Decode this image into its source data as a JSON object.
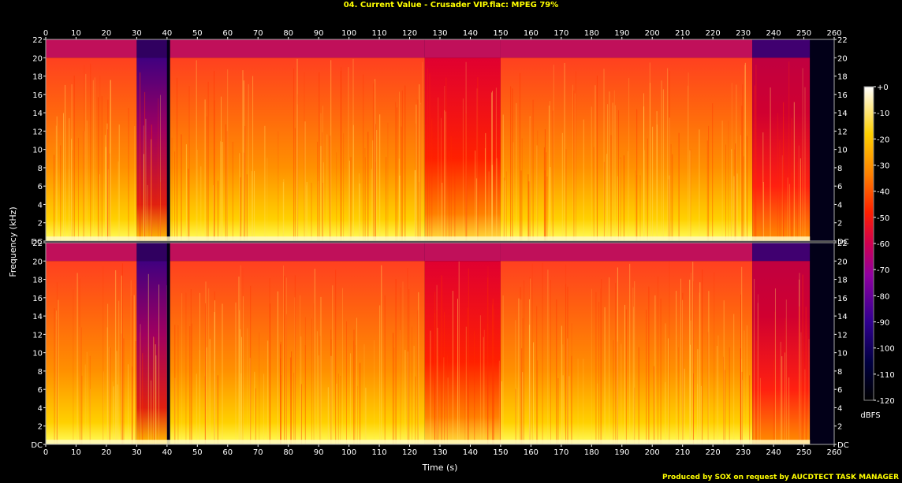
{
  "title": "04. Current Value - Crusader VIP.flac: MPEG 79%",
  "footer": "Produced by SOX on request by AUCDTECT TASK MANAGER",
  "chart_data": {
    "type": "heatmap",
    "title": "04. Current Value - Crusader VIP.flac: MPEG 79%",
    "xlabel": "Time (s)",
    "ylabel": "Frequency (kHz)",
    "xlim": [
      0,
      260
    ],
    "ylim": [
      0,
      22
    ],
    "x_ticks": [
      "0",
      "10",
      "20",
      "30",
      "40",
      "50",
      "60",
      "70",
      "80",
      "90",
      "100",
      "110",
      "120",
      "130",
      "140",
      "150",
      "160",
      "170",
      "180",
      "190",
      "200",
      "210",
      "220",
      "230",
      "240",
      "250",
      "260"
    ],
    "y_ticks": [
      "DC",
      "2",
      "4",
      "6",
      "8",
      "10",
      "12",
      "14",
      "16",
      "18",
      "20",
      "22"
    ],
    "channels": 2,
    "colorbar": {
      "label": "dBFS",
      "range": [
        -120,
        0
      ],
      "ticks": [
        "+0",
        "-10",
        "-20",
        "-30",
        "-40",
        "-50",
        "-60",
        "-70",
        "-80",
        "-90",
        "-100",
        "-110",
        "-120"
      ]
    },
    "segments": [
      {
        "t0": 0,
        "t1": 30,
        "cutoff_khz": 20,
        "level": "loud"
      },
      {
        "t0": 30,
        "t1": 40,
        "cutoff_khz": 20,
        "level": "fading"
      },
      {
        "t0": 40,
        "t1": 41,
        "cutoff_khz": 0,
        "level": "silent"
      },
      {
        "t0": 41,
        "t1": 125,
        "cutoff_khz": 20,
        "level": "loud"
      },
      {
        "t0": 125,
        "t1": 150,
        "cutoff_khz": 20,
        "level": "medium"
      },
      {
        "t0": 150,
        "t1": 233,
        "cutoff_khz": 20,
        "level": "loud"
      },
      {
        "t0": 233,
        "t1": 252,
        "cutoff_khz": 20,
        "level": "outro"
      },
      {
        "t0": 252,
        "t1": 260,
        "cutoff_khz": 0,
        "level": "silent"
      }
    ]
  }
}
